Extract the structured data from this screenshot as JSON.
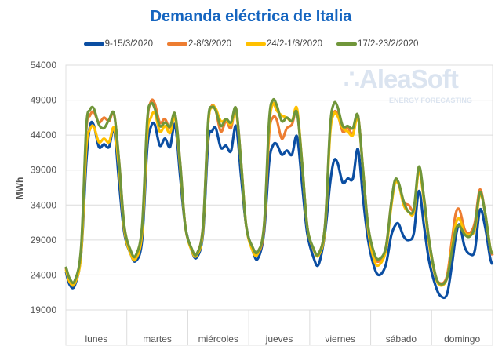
{
  "chart_data": {
    "type": "line",
    "title": "Demanda eléctrica de Italia",
    "ylabel": "MWh",
    "xlabel": "",
    "ylim": [
      19000,
      54000
    ],
    "yticks": [
      54000,
      49000,
      44000,
      39000,
      34000,
      29000,
      24000,
      19000
    ],
    "categories": [
      "lunes",
      "martes",
      "miércoles",
      "jueves",
      "viernes",
      "sábado",
      "domingo"
    ],
    "x_unit": "hours from Monday 00:00",
    "grid": true,
    "legend_position": "top",
    "watermark": "AleaSoft ENERGY FORECASTING",
    "x": [
      0,
      1.5,
      3.5,
      6,
      8,
      9.5,
      11,
      13,
      15,
      17,
      19,
      21,
      23,
      25.5,
      27.5,
      30,
      32,
      33.5,
      35,
      37,
      39,
      41,
      43,
      45,
      47,
      49.5,
      51.5,
      54,
      56,
      57.5,
      59,
      61,
      63,
      65,
      67,
      69,
      71,
      73.5,
      75.5,
      78,
      80,
      81.5,
      83,
      85,
      87,
      89,
      91,
      93,
      95,
      97.5,
      99.5,
      102,
      104,
      105.5,
      107,
      109,
      111,
      113,
      115,
      117,
      119,
      121.5,
      123.5,
      126,
      128,
      129.5,
      131,
      133,
      135,
      137,
      139,
      141,
      143,
      145.5,
      147.5,
      150,
      152,
      153.5,
      155,
      157,
      159,
      161,
      163,
      165,
      167,
      168
    ],
    "series": [
      {
        "name": "9-15/3/2020",
        "color": "#0b4ea2",
        "values": [
          24500,
          22600,
          22500,
          27000,
          40000,
          45300,
          45400,
          42300,
          42700,
          42300,
          44800,
          37000,
          30000,
          27000,
          26000,
          29000,
          42000,
          45200,
          45500,
          42500,
          43500,
          42300,
          45500,
          38000,
          31000,
          27500,
          26500,
          30000,
          43000,
          44500,
          45000,
          42200,
          42500,
          41700,
          45300,
          38000,
          31000,
          27500,
          26300,
          30000,
          40000,
          42500,
          42700,
          41200,
          41800,
          41200,
          43800,
          37000,
          30000,
          26500,
          25500,
          30000,
          37000,
          40300,
          40000,
          37200,
          37800,
          37800,
          42000,
          35000,
          29000,
          25000,
          24000,
          25500,
          29500,
          31000,
          31300,
          29500,
          29000,
          30000,
          36000,
          31000,
          26000,
          22500,
          21000,
          21200,
          25500,
          29500,
          31200,
          28000,
          27000,
          27500,
          33300,
          31000,
          26500,
          25500
        ]
      },
      {
        "name": "2-8/3/2020",
        "color": "#ed7d31",
        "values": [
          25000,
          23200,
          23000,
          27500,
          44500,
          46800,
          47300,
          45800,
          46500,
          46000,
          47000,
          40000,
          31000,
          27300,
          26700,
          30500,
          45500,
          48800,
          48500,
          45800,
          46300,
          45000,
          47000,
          40000,
          31000,
          27700,
          27000,
          31000,
          45500,
          48200,
          47500,
          44500,
          46000,
          45000,
          47800,
          40000,
          31000,
          27600,
          27000,
          30500,
          44000,
          46500,
          46200,
          43500,
          45000,
          45500,
          47300,
          40000,
          31000,
          27700,
          27000,
          31000,
          44500,
          47200,
          47000,
          44500,
          45000,
          44200,
          46800,
          39000,
          31000,
          26700,
          26000,
          28000,
          34000,
          37300,
          37000,
          34500,
          34000,
          33500,
          39000,
          35000,
          29000,
          24000,
          22800,
          23800,
          29000,
          32800,
          33300,
          30500,
          30000,
          31500,
          36200,
          33000,
          28000,
          26800
        ]
      },
      {
        "name": "24/2-1/3/2020",
        "color": "#ffc000",
        "values": [
          24800,
          23000,
          22800,
          27000,
          42000,
          44800,
          45200,
          43000,
          43500,
          43000,
          45000,
          39000,
          30500,
          27000,
          26300,
          30000,
          44000,
          46500,
          47200,
          44500,
          45300,
          44300,
          46500,
          39500,
          31000,
          27500,
          26800,
          30500,
          45500,
          48000,
          47800,
          46000,
          46200,
          45500,
          47300,
          40000,
          31000,
          27500,
          27000,
          31000,
          45000,
          48500,
          47500,
          46800,
          46500,
          46000,
          47800,
          40000,
          31000,
          27700,
          26800,
          30500,
          44000,
          47000,
          46700,
          45000,
          44500,
          44000,
          46500,
          39000,
          30500,
          26000,
          25500,
          27500,
          33500,
          37000,
          37000,
          34000,
          33000,
          33000,
          39000,
          34500,
          28500,
          23800,
          22500,
          23500,
          28000,
          31300,
          32000,
          30000,
          29800,
          30500,
          35500,
          33000,
          28000,
          27200
        ]
      },
      {
        "name": "17/2-23/2/2020",
        "color": "#70963a",
        "values": [
          25200,
          23500,
          23200,
          28000,
          45000,
          47600,
          47800,
          45500,
          45000,
          46200,
          47000,
          40000,
          31000,
          27500,
          26800,
          31000,
          46000,
          48500,
          47800,
          45300,
          45800,
          45200,
          47000,
          40000,
          31000,
          27800,
          27000,
          31000,
          46000,
          48000,
          47500,
          45300,
          46300,
          45800,
          47800,
          40000,
          31000,
          28000,
          27300,
          31000,
          46000,
          49000,
          48300,
          46000,
          46500,
          46000,
          47200,
          40000,
          31000,
          27800,
          27000,
          31000,
          45000,
          48500,
          48000,
          45300,
          45300,
          45000,
          46800,
          39000,
          31000,
          27000,
          26300,
          28000,
          34000,
          37500,
          37200,
          34500,
          33000,
          33500,
          39500,
          35000,
          29000,
          24000,
          22700,
          23500,
          27500,
          30500,
          31000,
          29800,
          29500,
          31000,
          35800,
          33000,
          28000,
          27000
        ]
      }
    ]
  }
}
